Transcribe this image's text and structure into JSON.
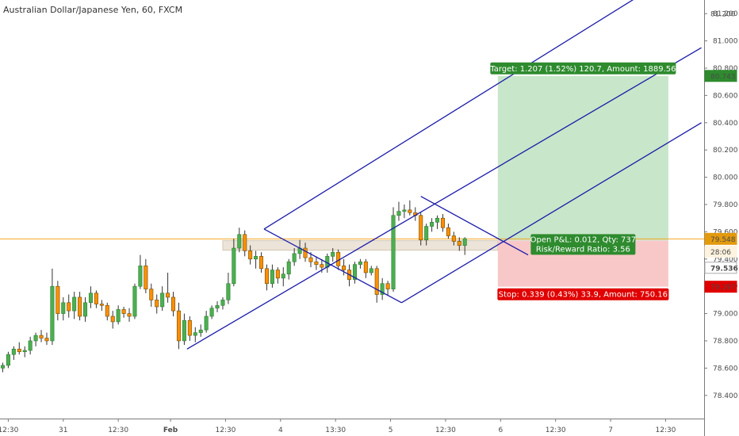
{
  "title": "Australian Dollar/Japanese Yen, 60, FXCM",
  "colors": {
    "up_body": "#4caf50",
    "up_border": "#2e7d32",
    "down_body": "#ff8f00",
    "down_border": "#6d4c00",
    "wick": "#333333",
    "channel": "#1a1aaa",
    "price_line": "#f5a623",
    "target_fill": "#c8e6c9",
    "stop_fill": "#f8c8c8",
    "target_tag": "#2e8b2e",
    "stop_tag": "#e00000",
    "last_tag": "#e39a0d",
    "axis_text": "#4a4a4a",
    "grid_off": "#ffffff"
  },
  "chart_data": {
    "type": "candlestick",
    "grid": false,
    "y_axis": {
      "position": "right",
      "ylim": [
        78.23,
        81.3
      ],
      "ticks": [
        "78.400",
        "78.600",
        "78.800",
        "79.000",
        "79.200",
        "79.400",
        "79.600",
        "79.800",
        "80.000",
        "80.200",
        "80.400",
        "80.600",
        "80.800",
        "81.000",
        "81.200"
      ]
    },
    "x_axis": {
      "xlim": [
        0,
        128
      ],
      "ticks": [
        {
          "x": 1.5,
          "label": "12:30"
        },
        {
          "x": 11.5,
          "label": "31"
        },
        {
          "x": 21.5,
          "label": "12:30"
        },
        {
          "x": 31,
          "label": "Feb"
        },
        {
          "x": 41,
          "label": "12:30"
        },
        {
          "x": 51,
          "label": "4"
        },
        {
          "x": 61,
          "label": "13:30"
        },
        {
          "x": 71,
          "label": "5"
        },
        {
          "x": 81,
          "label": "12:30"
        },
        {
          "x": 91,
          "label": "6"
        },
        {
          "x": 101,
          "label": "12:30"
        },
        {
          "x": 111,
          "label": "7"
        },
        {
          "x": 121,
          "label": "12:30"
        }
      ]
    },
    "candles": [
      {
        "o": 78.6,
        "h": 78.64,
        "l": 78.57,
        "c": 78.62
      },
      {
        "o": 78.62,
        "h": 78.72,
        "l": 78.6,
        "c": 78.7
      },
      {
        "o": 78.7,
        "h": 78.76,
        "l": 78.66,
        "c": 78.74
      },
      {
        "o": 78.74,
        "h": 78.79,
        "l": 78.7,
        "c": 78.72
      },
      {
        "o": 78.72,
        "h": 78.76,
        "l": 78.68,
        "c": 78.73
      },
      {
        "o": 78.73,
        "h": 78.83,
        "l": 78.7,
        "c": 78.8
      },
      {
        "o": 78.8,
        "h": 78.86,
        "l": 78.76,
        "c": 78.84
      },
      {
        "o": 78.84,
        "h": 78.88,
        "l": 78.79,
        "c": 78.82
      },
      {
        "o": 78.82,
        "h": 78.86,
        "l": 78.77,
        "c": 78.8
      },
      {
        "o": 78.8,
        "h": 79.33,
        "l": 78.77,
        "c": 79.2
      },
      {
        "o": 79.2,
        "h": 79.24,
        "l": 78.95,
        "c": 79.0
      },
      {
        "o": 79.0,
        "h": 79.12,
        "l": 78.95,
        "c": 79.08
      },
      {
        "o": 79.08,
        "h": 79.14,
        "l": 78.97,
        "c": 79.02
      },
      {
        "o": 79.02,
        "h": 79.16,
        "l": 78.96,
        "c": 79.12
      },
      {
        "o": 79.12,
        "h": 79.16,
        "l": 78.95,
        "c": 78.98
      },
      {
        "o": 78.98,
        "h": 79.12,
        "l": 78.94,
        "c": 79.08
      },
      {
        "o": 79.08,
        "h": 79.2,
        "l": 79.04,
        "c": 79.15
      },
      {
        "o": 79.15,
        "h": 79.17,
        "l": 79.04,
        "c": 79.07
      },
      {
        "o": 79.07,
        "h": 79.1,
        "l": 79.02,
        "c": 79.06
      },
      {
        "o": 79.06,
        "h": 79.08,
        "l": 78.95,
        "c": 78.98
      },
      {
        "o": 78.98,
        "h": 79.02,
        "l": 78.89,
        "c": 78.94
      },
      {
        "o": 78.94,
        "h": 79.06,
        "l": 78.92,
        "c": 79.03
      },
      {
        "o": 79.03,
        "h": 79.05,
        "l": 78.97,
        "c": 79.0
      },
      {
        "o": 79.0,
        "h": 79.04,
        "l": 78.94,
        "c": 78.98
      },
      {
        "o": 78.98,
        "h": 79.22,
        "l": 78.96,
        "c": 79.2
      },
      {
        "o": 79.2,
        "h": 79.43,
        "l": 79.18,
        "c": 79.35
      },
      {
        "o": 79.35,
        "h": 79.4,
        "l": 79.15,
        "c": 79.18
      },
      {
        "o": 79.18,
        "h": 79.22,
        "l": 79.05,
        "c": 79.1
      },
      {
        "o": 79.1,
        "h": 79.14,
        "l": 79.0,
        "c": 79.05
      },
      {
        "o": 79.05,
        "h": 79.2,
        "l": 79.02,
        "c": 79.15
      },
      {
        "o": 79.15,
        "h": 79.3,
        "l": 79.08,
        "c": 79.12
      },
      {
        "o": 79.12,
        "h": 79.16,
        "l": 78.98,
        "c": 79.02
      },
      {
        "o": 79.02,
        "h": 79.08,
        "l": 78.74,
        "c": 78.8
      },
      {
        "o": 78.8,
        "h": 79.0,
        "l": 78.77,
        "c": 78.95
      },
      {
        "o": 78.95,
        "h": 78.98,
        "l": 78.8,
        "c": 78.84
      },
      {
        "o": 78.84,
        "h": 78.9,
        "l": 78.79,
        "c": 78.86
      },
      {
        "o": 78.86,
        "h": 78.92,
        "l": 78.83,
        "c": 78.88
      },
      {
        "o": 78.88,
        "h": 79.02,
        "l": 78.86,
        "c": 78.98
      },
      {
        "o": 78.98,
        "h": 79.06,
        "l": 78.96,
        "c": 79.04
      },
      {
        "o": 79.04,
        "h": 79.09,
        "l": 79.01,
        "c": 79.06
      },
      {
        "o": 79.06,
        "h": 79.12,
        "l": 79.03,
        "c": 79.1
      },
      {
        "o": 79.1,
        "h": 79.3,
        "l": 79.07,
        "c": 79.22
      },
      {
        "o": 79.22,
        "h": 79.55,
        "l": 79.2,
        "c": 79.48
      },
      {
        "o": 79.48,
        "h": 79.63,
        "l": 79.45,
        "c": 79.58
      },
      {
        "o": 79.58,
        "h": 79.61,
        "l": 79.42,
        "c": 79.46
      },
      {
        "o": 79.46,
        "h": 79.5,
        "l": 79.36,
        "c": 79.4
      },
      {
        "o": 79.4,
        "h": 79.46,
        "l": 79.33,
        "c": 79.42
      },
      {
        "o": 79.42,
        "h": 79.45,
        "l": 79.3,
        "c": 79.33
      },
      {
        "o": 79.33,
        "h": 79.36,
        "l": 79.17,
        "c": 79.22
      },
      {
        "o": 79.22,
        "h": 79.36,
        "l": 79.19,
        "c": 79.32
      },
      {
        "o": 79.32,
        "h": 79.34,
        "l": 79.22,
        "c": 79.26
      },
      {
        "o": 79.26,
        "h": 79.34,
        "l": 79.2,
        "c": 79.29
      },
      {
        "o": 79.29,
        "h": 79.4,
        "l": 79.25,
        "c": 79.38
      },
      {
        "o": 79.38,
        "h": 79.48,
        "l": 79.35,
        "c": 79.44
      },
      {
        "o": 79.44,
        "h": 79.54,
        "l": 79.4,
        "c": 79.48
      },
      {
        "o": 79.48,
        "h": 79.52,
        "l": 79.38,
        "c": 79.41
      },
      {
        "o": 79.41,
        "h": 79.45,
        "l": 79.34,
        "c": 79.38
      },
      {
        "o": 79.38,
        "h": 79.42,
        "l": 79.32,
        "c": 79.36
      },
      {
        "o": 79.36,
        "h": 79.4,
        "l": 79.3,
        "c": 79.34
      },
      {
        "o": 79.34,
        "h": 79.44,
        "l": 79.3,
        "c": 79.42
      },
      {
        "o": 79.42,
        "h": 79.48,
        "l": 79.38,
        "c": 79.45
      },
      {
        "o": 79.45,
        "h": 79.47,
        "l": 79.32,
        "c": 79.35
      },
      {
        "o": 79.35,
        "h": 79.4,
        "l": 79.28,
        "c": 79.32
      },
      {
        "o": 79.32,
        "h": 79.36,
        "l": 79.2,
        "c": 79.25
      },
      {
        "o": 79.25,
        "h": 79.38,
        "l": 79.22,
        "c": 79.36
      },
      {
        "o": 79.36,
        "h": 79.4,
        "l": 79.33,
        "c": 79.38
      },
      {
        "o": 79.38,
        "h": 79.4,
        "l": 79.26,
        "c": 79.3
      },
      {
        "o": 79.3,
        "h": 79.35,
        "l": 79.28,
        "c": 79.33
      },
      {
        "o": 79.33,
        "h": 79.35,
        "l": 79.08,
        "c": 79.14
      },
      {
        "o": 79.14,
        "h": 79.26,
        "l": 79.1,
        "c": 79.22
      },
      {
        "o": 79.22,
        "h": 79.24,
        "l": 79.13,
        "c": 79.18
      },
      {
        "o": 79.18,
        "h": 79.78,
        "l": 79.16,
        "c": 79.72
      },
      {
        "o": 79.72,
        "h": 79.82,
        "l": 79.68,
        "c": 79.75
      },
      {
        "o": 79.75,
        "h": 79.8,
        "l": 79.7,
        "c": 79.76
      },
      {
        "o": 79.76,
        "h": 79.83,
        "l": 79.72,
        "c": 79.74
      },
      {
        "o": 79.74,
        "h": 79.78,
        "l": 79.68,
        "c": 79.72
      },
      {
        "o": 79.72,
        "h": 79.74,
        "l": 79.5,
        "c": 79.54
      },
      {
        "o": 79.54,
        "h": 79.66,
        "l": 79.5,
        "c": 79.64
      },
      {
        "o": 79.64,
        "h": 79.7,
        "l": 79.6,
        "c": 79.67
      },
      {
        "o": 79.67,
        "h": 79.72,
        "l": 79.62,
        "c": 79.7
      },
      {
        "o": 79.7,
        "h": 79.73,
        "l": 79.6,
        "c": 79.63
      },
      {
        "o": 79.63,
        "h": 79.66,
        "l": 79.55,
        "c": 79.57
      },
      {
        "o": 79.57,
        "h": 79.6,
        "l": 79.5,
        "c": 79.53
      },
      {
        "o": 79.53,
        "h": 79.56,
        "l": 79.46,
        "c": 79.5
      },
      {
        "o": 79.5,
        "h": 79.56,
        "l": 79.43,
        "c": 79.55
      }
    ],
    "support_zone": {
      "x0": 40.5,
      "x1": 90.5,
      "y0": 79.465,
      "y1": 79.535
    },
    "price_line": 79.548,
    "channels": [
      {
        "name": "channel-upper",
        "x0": 48,
        "y0": 79.62,
        "x1": 117,
        "y1": 81.35
      },
      {
        "name": "channel-median",
        "x0": 34,
        "y0": 78.74,
        "x1": 127.5,
        "y1": 80.95
      },
      {
        "name": "channel-lower",
        "x0": 73,
        "y0": 79.08,
        "x1": 127.5,
        "y1": 80.4
      }
    ],
    "pattern_lines": [
      {
        "x0": 48,
        "y0": 79.62,
        "x1": 73,
        "y1": 79.08
      },
      {
        "x0": 76.5,
        "y0": 79.86,
        "x1": 96,
        "y1": 79.43
      }
    ],
    "position": {
      "x0": 90.5,
      "x1": 121.5,
      "entry": 79.536,
      "target": 80.743,
      "stop": 79.197
    },
    "price_tags": [
      {
        "value": "81.200",
        "y": 81.2
      },
      {
        "value": "80.743",
        "y": 80.743,
        "kind": "target"
      },
      {
        "value": "79.548",
        "y": 79.548,
        "kind": "last"
      },
      {
        "value": "28:06",
        "y": 79.455,
        "kind": "timer"
      },
      {
        "value": "79.536",
        "y": 79.336,
        "kind": "entry"
      },
      {
        "value": "79.197",
        "y": 79.197,
        "kind": "stop"
      }
    ],
    "annotations": {
      "target": "Target: 1.207 (1.52%) 120.7, Amount: 1889.56",
      "pnl_line1": "Open P&L: 0.012, Qty: 737",
      "pnl_line2": "Risk/Reward Ratio: 3.56",
      "stop": "Stop: 0.339 (0.43%) 33.9, Amount: 750.16"
    }
  }
}
